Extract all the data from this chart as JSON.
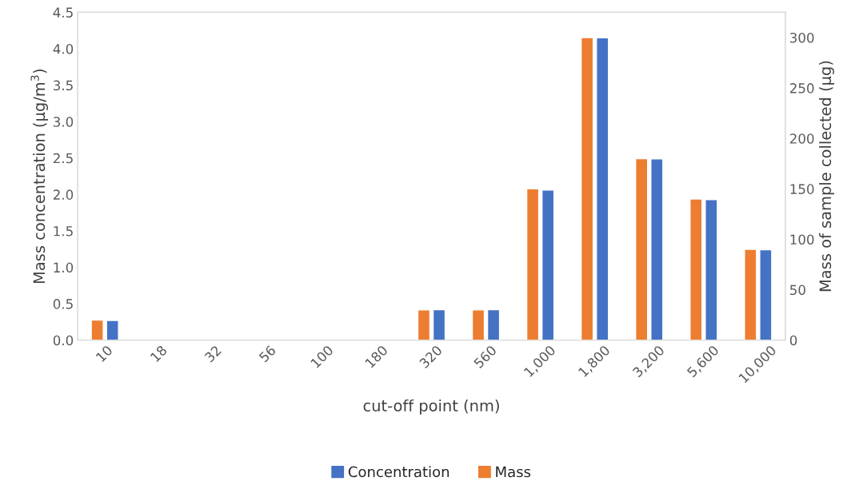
{
  "chart_data": {
    "type": "bar",
    "xlabel": "cut-off point (nm)",
    "ylabel": "Mass concentration (µg/m$^{3}$)",
    "y2label": "Mass of sample collected (µg)",
    "categories": [
      "10",
      "18",
      "32",
      "56",
      "100",
      "180",
      "320",
      "560",
      "1,000",
      "1,800",
      "3,200",
      "5,600",
      "10,000"
    ],
    "series": [
      {
        "name": "Mass",
        "color": "#ed7d31",
        "axis": "y2",
        "values": [
          20,
          null,
          null,
          null,
          null,
          null,
          30,
          30,
          150,
          300,
          180,
          140,
          90
        ]
      },
      {
        "name": "Concentration",
        "color": "#4472c4",
        "values": [
          0.27,
          null,
          null,
          null,
          null,
          null,
          0.42,
          0.42,
          2.06,
          4.15,
          2.49,
          1.93,
          1.24
        ]
      }
    ],
    "ylim": [
      0,
      4.5
    ],
    "yticks": [
      {
        "value": 0,
        "label": "0.0"
      },
      {
        "value": 0.5,
        "label": "0.5"
      },
      {
        "value": 1,
        "label": "1.0"
      },
      {
        "value": 1.5,
        "label": "1.5"
      },
      {
        "value": 2,
        "label": "2.0"
      },
      {
        "value": 2.5,
        "label": "2.5"
      },
      {
        "value": 3,
        "label": "3.0"
      },
      {
        "value": 3.5,
        "label": "3.5"
      },
      {
        "value": 4,
        "label": "4.0"
      },
      {
        "value": 4.5,
        "label": "4.5"
      }
    ],
    "y2lim": [
      0,
      325
    ],
    "y2ticks": [
      0,
      50,
      100,
      150,
      200,
      250,
      300
    ],
    "grid": false,
    "legend": "bottom"
  }
}
